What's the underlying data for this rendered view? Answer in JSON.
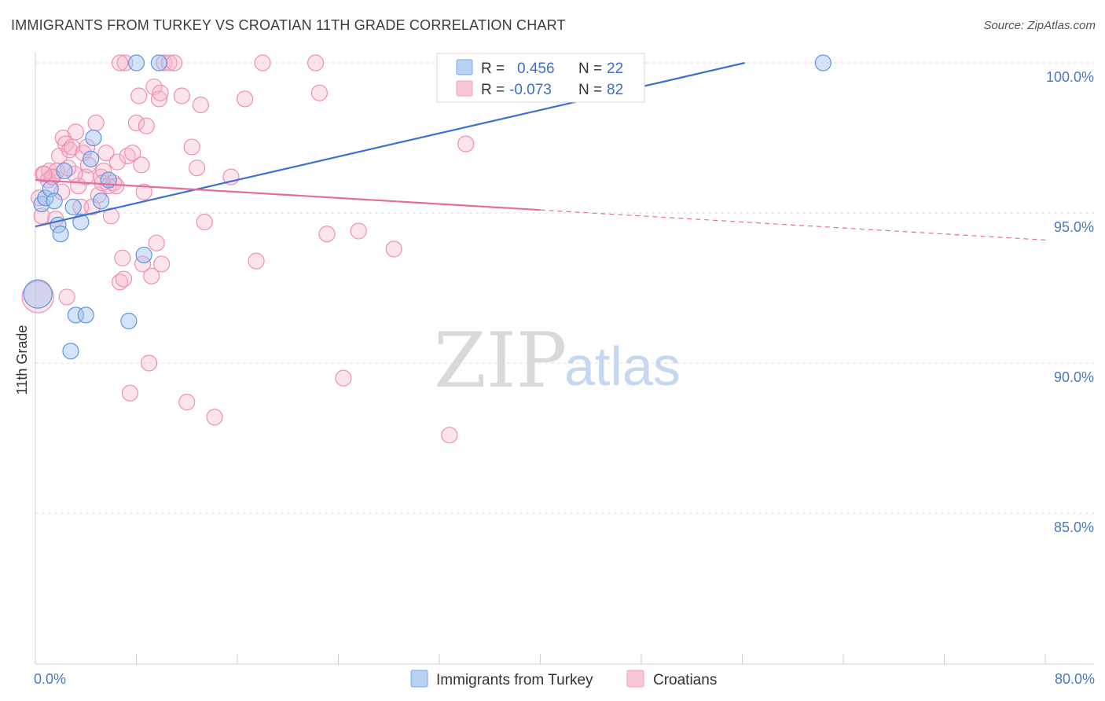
{
  "title": "IMMIGRANTS FROM TURKEY VS CROATIAN 11TH GRADE CORRELATION CHART",
  "source": "Source: ZipAtlas.com",
  "watermark": {
    "zip": "ZIP",
    "atlas": "atlas"
  },
  "chart_data": {
    "type": "scatter",
    "title": "IMMIGRANTS FROM TURKEY VS CROATIAN 11TH GRADE CORRELATION CHART",
    "xlabel": "",
    "ylabel": "11th Grade",
    "xlim": [
      0,
      80
    ],
    "ylim": [
      80.6,
      100.5
    ],
    "x_tick_labels": [
      {
        "value": 0,
        "label": "0.0%"
      },
      {
        "value": 80,
        "label": "80.0%"
      }
    ],
    "y_tick_labels": [
      {
        "value": 100,
        "label": "100.0%"
      },
      {
        "value": 95,
        "label": "95.0%"
      },
      {
        "value": 90,
        "label": "90.0%"
      },
      {
        "value": 85,
        "label": "85.0%"
      }
    ],
    "legend": [
      {
        "name": "Immigrants from Turkey",
        "r_label": "R =",
        "r": "0.456",
        "n_label": "N =",
        "n": "22",
        "color": "#7aa7e8",
        "line_color": "#3a72d4"
      },
      {
        "name": "Croatians",
        "r_label": "R =",
        "r": "-0.073",
        "n_label": "N =",
        "n": "82",
        "color": "#f4a3c0",
        "line_color": "#e46e98"
      }
    ],
    "series": [
      {
        "name": "Immigrants from Turkey",
        "color": "#7aa7e8",
        "trend": {
          "x0": 0,
          "y0": 94.55,
          "x1": 56.2,
          "y1": 100.0,
          "dashed_to": null
        },
        "points": [
          [
            0.5,
            95.3
          ],
          [
            0.8,
            95.5
          ],
          [
            1.2,
            95.8
          ],
          [
            1.5,
            95.4
          ],
          [
            1.8,
            94.6
          ],
          [
            2.0,
            94.3
          ],
          [
            2.3,
            96.4
          ],
          [
            2.8,
            90.4
          ],
          [
            3.0,
            95.2
          ],
          [
            3.2,
            91.6
          ],
          [
            3.6,
            94.7
          ],
          [
            4.0,
            91.6
          ],
          [
            4.4,
            96.8
          ],
          [
            4.6,
            97.5
          ],
          [
            5.2,
            95.4
          ],
          [
            5.8,
            96.1
          ],
          [
            7.4,
            91.4
          ],
          [
            8.0,
            100.0
          ],
          [
            8.6,
            93.6
          ],
          [
            9.8,
            100.0
          ],
          [
            62.4,
            100.0
          ],
          [
            0.2,
            92.3
          ]
        ],
        "sizes": [
          10,
          10,
          10,
          10,
          10,
          10,
          10,
          10,
          10,
          10,
          10,
          10,
          10,
          10,
          10,
          10,
          10,
          10,
          10,
          10,
          10,
          18
        ]
      },
      {
        "name": "Croatians",
        "color": "#f4a3c0",
        "trend": {
          "x0": 0,
          "y0": 96.1,
          "x1": 40.0,
          "y1": 95.1,
          "dashed_to": {
            "x": 80.0,
            "y": 94.1
          }
        },
        "points": [
          [
            0.3,
            95.5
          ],
          [
            0.5,
            94.9
          ],
          [
            0.6,
            96.3
          ],
          [
            1.0,
            96.1
          ],
          [
            1.1,
            96.4
          ],
          [
            1.4,
            96.2
          ],
          [
            1.6,
            94.8
          ],
          [
            1.9,
            96.9
          ],
          [
            2.1,
            95.7
          ],
          [
            2.2,
            97.5
          ],
          [
            2.4,
            97.3
          ],
          [
            2.5,
            92.2
          ],
          [
            2.7,
            97.1
          ],
          [
            2.9,
            97.2
          ],
          [
            3.2,
            97.7
          ],
          [
            3.4,
            95.9
          ],
          [
            3.6,
            95.2
          ],
          [
            3.8,
            97.0
          ],
          [
            4.0,
            96.2
          ],
          [
            4.2,
            96.6
          ],
          [
            4.5,
            95.2
          ],
          [
            4.8,
            98.0
          ],
          [
            5.0,
            95.6
          ],
          [
            5.2,
            96.2
          ],
          [
            5.4,
            96.4
          ],
          [
            5.6,
            97.0
          ],
          [
            5.8,
            95.9
          ],
          [
            6.0,
            94.9
          ],
          [
            6.2,
            96.0
          ],
          [
            6.5,
            96.7
          ],
          [
            6.7,
            92.7
          ],
          [
            6.9,
            93.5
          ],
          [
            7.1,
            100.0
          ],
          [
            7.3,
            96.9
          ],
          [
            7.5,
            89.0
          ],
          [
            7.7,
            97.0
          ],
          [
            8.0,
            98.0
          ],
          [
            8.2,
            98.9
          ],
          [
            8.4,
            96.6
          ],
          [
            8.6,
            95.7
          ],
          [
            8.8,
            97.9
          ],
          [
            9.0,
            90.0
          ],
          [
            9.2,
            92.9
          ],
          [
            9.4,
            99.2
          ],
          [
            9.6,
            94.0
          ],
          [
            9.8,
            98.8
          ],
          [
            10.0,
            93.3
          ],
          [
            10.2,
            100.0
          ],
          [
            10.6,
            100.0
          ],
          [
            11.0,
            100.0
          ],
          [
            11.6,
            98.9
          ],
          [
            12.0,
            88.7
          ],
          [
            12.4,
            97.2
          ],
          [
            12.8,
            96.5
          ],
          [
            13.1,
            98.6
          ],
          [
            13.4,
            94.7
          ],
          [
            14.2,
            88.2
          ],
          [
            15.5,
            96.2
          ],
          [
            16.6,
            98.8
          ],
          [
            17.5,
            93.4
          ],
          [
            18.0,
            100.0
          ],
          [
            22.2,
            100.0
          ],
          [
            22.5,
            99.0
          ],
          [
            23.1,
            94.3
          ],
          [
            24.4,
            89.5
          ],
          [
            25.6,
            94.4
          ],
          [
            28.4,
            93.8
          ],
          [
            32.8,
            87.6
          ],
          [
            34.1,
            97.3
          ],
          [
            5.3,
            96.0
          ],
          [
            3.1,
            96.3
          ],
          [
            1.7,
            96.4
          ],
          [
            6.4,
            95.9
          ],
          [
            8.5,
            93.3
          ],
          [
            7.0,
            92.8
          ],
          [
            9.9,
            99.0
          ],
          [
            6.7,
            100.0
          ],
          [
            4.1,
            97.2
          ],
          [
            2.6,
            96.5
          ],
          [
            1.3,
            96.2
          ],
          [
            0.7,
            96.3
          ],
          [
            0.2,
            92.2
          ]
        ],
        "sizes": [
          10,
          10,
          10,
          10,
          10,
          10,
          10,
          10,
          10,
          10,
          10,
          10,
          10,
          10,
          10,
          10,
          10,
          10,
          10,
          10,
          10,
          10,
          10,
          10,
          10,
          10,
          10,
          10,
          10,
          10,
          10,
          10,
          10,
          10,
          10,
          10,
          10,
          10,
          10,
          10,
          10,
          10,
          10,
          10,
          10,
          10,
          10,
          10,
          10,
          10,
          10,
          10,
          10,
          10,
          10,
          10,
          10,
          10,
          10,
          10,
          10,
          10,
          10,
          10,
          10,
          10,
          10,
          10,
          10,
          10,
          10,
          10,
          10,
          10,
          10,
          10,
          10,
          10,
          10,
          10,
          10,
          20
        ]
      }
    ]
  }
}
